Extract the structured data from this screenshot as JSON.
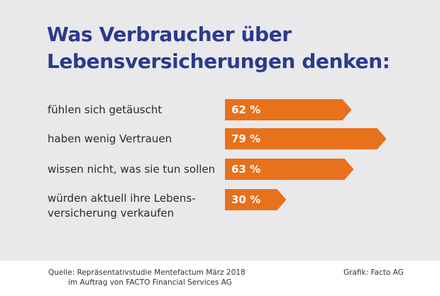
{
  "title_lines": [
    "Was Verbraucher über",
    "Lebensversicherungen denken:"
  ],
  "chart_data": {
    "type": "bar",
    "orientation": "horizontal",
    "categories": [
      "fühlen sich getäuscht",
      "haben wenig Vertrauen",
      "wissen nicht, was sie tun sollen",
      "würden aktuell ihre Lebensversicherung verkaufen"
    ],
    "category_display_lines": [
      [
        "fühlen sich getäuscht"
      ],
      [
        "haben wenig Vertrauen"
      ],
      [
        "wissen nicht, was sie tun sollen"
      ],
      [
        "würden aktuell ihre Lebens-",
        "versicherung verkaufen"
      ]
    ],
    "values": [
      62,
      79,
      63,
      30
    ],
    "value_labels": [
      "62 %",
      "79 %",
      "63 %",
      "30 %"
    ],
    "unit": "%",
    "bar_color": "#e8711c",
    "xlim": [
      0,
      100
    ],
    "grid": false,
    "legend": "none"
  },
  "footer": {
    "source_line_1": "Quelle: Repräsentativstudie Mentefactum März 2018",
    "source_line_2": "im Auftrag von FACTO Financial Services AG",
    "credit": "Grafik: Facto AG"
  },
  "colors": {
    "title": "#2b3a8c",
    "background": "#e9e9ec",
    "bar": "#e8711c"
  }
}
